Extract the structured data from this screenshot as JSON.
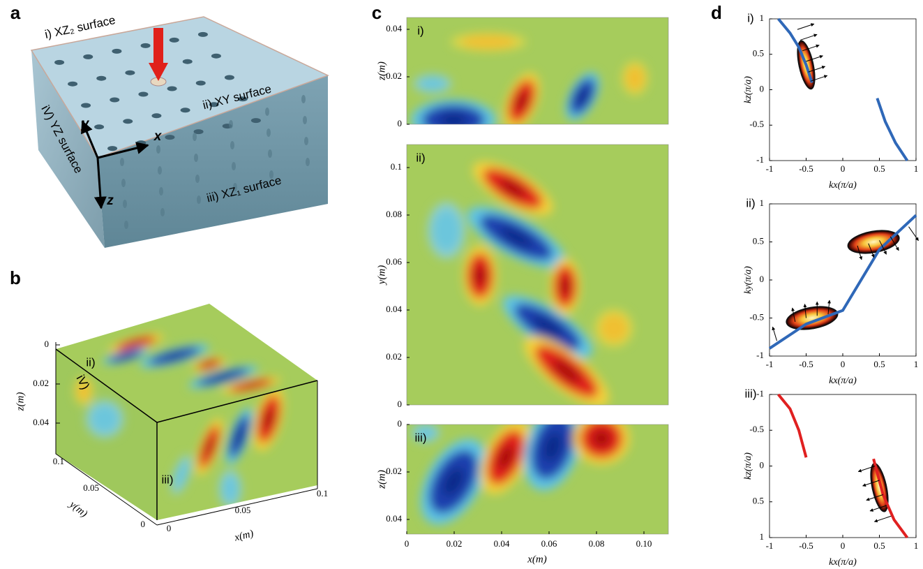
{
  "panel_a": {
    "label": "a",
    "surface_labels": [
      "i) XZ₂ surface",
      "ii) XY surface",
      "iii) XZ₁ surface",
      "iV) YZ surface"
    ],
    "axis_labels": [
      "x",
      "y",
      "z"
    ]
  },
  "panel_b": {
    "label": "b",
    "face_labels": [
      "ii)",
      "iV)",
      "iii)"
    ],
    "z_axis": {
      "title": "z(m)",
      "ticks": [
        "0",
        "0.02",
        "0.04"
      ]
    },
    "y_axis": {
      "title": "y(m)",
      "ticks": [
        "0.1",
        "0.05",
        "0"
      ]
    },
    "x_axis": {
      "title": "x(m)",
      "ticks": [
        "0",
        "0.05",
        "0.1"
      ]
    }
  },
  "panel_c": {
    "label": "c",
    "subplots": [
      {
        "label": "i)",
        "y_title": "z(m)",
        "y_ticks": [
          "0",
          "0.02",
          "0.04"
        ]
      },
      {
        "label": "ii)",
        "y_title": "y(m)",
        "y_ticks": [
          "0",
          "0.02",
          "0.04",
          "0.06",
          "0.08",
          "0.1"
        ]
      },
      {
        "label": "iii)",
        "y_title": "z(m)",
        "y_ticks": [
          "0",
          "0.02",
          "0.04"
        ]
      }
    ],
    "x_title": "x(m)",
    "x_ticks": [
      "0",
      "0.02",
      "0.04",
      "0.06",
      "0.08",
      "0.10"
    ]
  },
  "panel_d": {
    "label": "d",
    "subplots": [
      {
        "label": "i)",
        "y_title": "kz(π/a)",
        "y_ticks": [
          "1",
          "0.5",
          "0",
          "-0.5",
          "-1"
        ],
        "x_title": "kx(π/a)",
        "x_ticks": [
          "-1",
          "-0.5",
          "0",
          "0.5",
          "1"
        ]
      },
      {
        "label": "ii)",
        "y_title": "ky(π/a)",
        "y_ticks": [
          "1",
          "0.5",
          "0",
          "-0.5",
          "-1"
        ],
        "x_title": "kx(π/a)",
        "x_ticks": [
          "-1",
          "-0.5",
          "0",
          "0.5",
          "1"
        ]
      },
      {
        "label": "iii)",
        "y_title": "kz(π/a)",
        "y_ticks": [
          "-1",
          "-0.5",
          "0",
          "0.5",
          "1"
        ],
        "x_title": "kx(π/a)",
        "x_ticks": [
          "-1",
          "-0.5",
          "0",
          "0.5",
          "1"
        ]
      }
    ]
  }
}
